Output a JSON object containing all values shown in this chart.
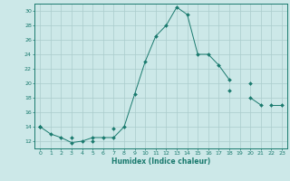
{
  "xlabel": "Humidex (Indice chaleur)",
  "x_values": [
    0,
    1,
    2,
    3,
    4,
    5,
    6,
    7,
    8,
    9,
    10,
    11,
    12,
    13,
    14,
    15,
    16,
    17,
    18,
    19,
    20,
    21,
    22,
    23
  ],
  "line1_y": [
    14,
    13,
    12.5,
    11.8,
    12,
    12.5,
    12.5,
    12.5,
    14,
    18.5,
    23,
    26.5,
    28,
    30.5,
    29.5,
    24,
    24,
    22.5,
    20.5,
    null,
    null,
    null,
    null,
    null
  ],
  "line2_y": [
    14,
    null,
    null,
    12.5,
    null,
    12,
    null,
    13.8,
    null,
    null,
    null,
    null,
    null,
    null,
    null,
    null,
    null,
    null,
    19,
    null,
    18,
    17,
    null,
    null
  ],
  "line3_y": [
    14,
    null,
    null,
    null,
    null,
    null,
    null,
    null,
    null,
    null,
    null,
    null,
    null,
    null,
    null,
    null,
    null,
    null,
    null,
    null,
    20,
    null,
    17,
    17
  ],
  "ylim": [
    11,
    31
  ],
  "xlim": [
    -0.5,
    23.5
  ],
  "yticks": [
    12,
    14,
    16,
    18,
    20,
    22,
    24,
    26,
    28,
    30
  ],
  "xticks": [
    0,
    1,
    2,
    3,
    4,
    5,
    6,
    7,
    8,
    9,
    10,
    11,
    12,
    13,
    14,
    15,
    16,
    17,
    18,
    19,
    20,
    21,
    22,
    23
  ],
  "line_color": "#1a7a6e",
  "bg_color": "#cce8e8",
  "grid_color": "#aacccc"
}
